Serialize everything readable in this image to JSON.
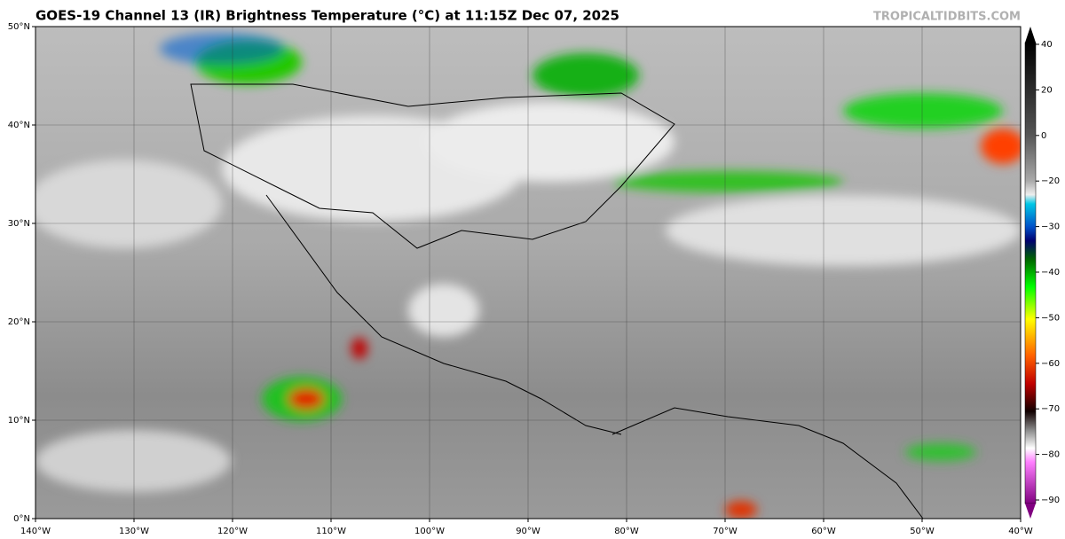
{
  "header": {
    "title": "GOES-19 Channel 13 (IR) Brightness Temperature (°C) at 11:15Z Dec 07, 2025",
    "watermark": "TROPICALTIDBITS.COM"
  },
  "map": {
    "lat_labels": [
      "50°N",
      "40°N",
      "30°N",
      "20°N",
      "10°N",
      "0°N"
    ],
    "lon_labels": [
      "140°W",
      "130°W",
      "120°W",
      "110°W",
      "100°W",
      "90°W",
      "80°W",
      "70°W",
      "60°W",
      "50°W",
      "40°W"
    ]
  },
  "colorbar": {
    "labels": [
      "40",
      "20",
      "0",
      "−20",
      "−30",
      "−40",
      "−50",
      "−60",
      "−70",
      "−80",
      "−90"
    ]
  }
}
